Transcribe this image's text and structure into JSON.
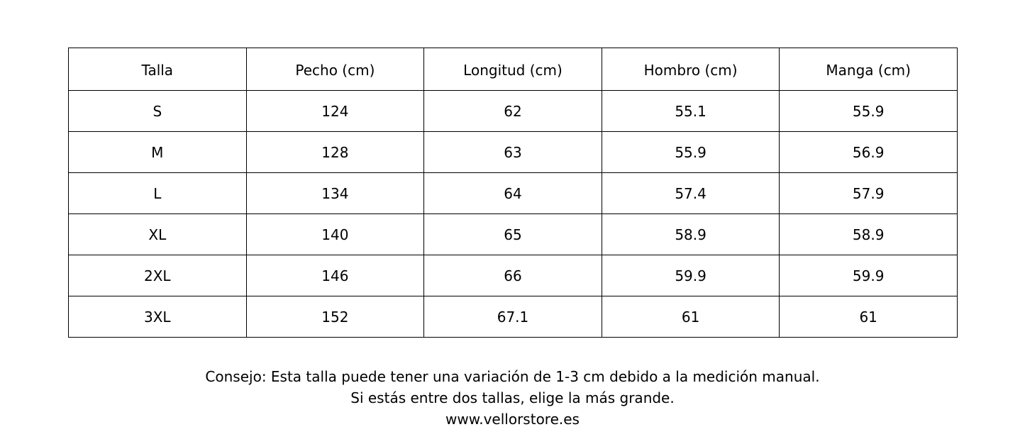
{
  "table": {
    "headers": [
      "Talla",
      "Pecho (cm)",
      "Longitud (cm)",
      "Hombro (cm)",
      "Manga (cm)"
    ],
    "rows": [
      [
        "S",
        "124",
        "62",
        "55.1",
        "55.9"
      ],
      [
        "M",
        "128",
        "63",
        "55.9",
        "56.9"
      ],
      [
        "L",
        "134",
        "64",
        "57.4",
        "57.9"
      ],
      [
        "XL",
        "140",
        "65",
        "58.9",
        "58.9"
      ],
      [
        "2XL",
        "146",
        "66",
        "59.9",
        "59.9"
      ],
      [
        "3XL",
        "152",
        "67.1",
        "61",
        "61"
      ]
    ]
  },
  "footer": {
    "tip": "Consejo: Esta talla puede tener una variación de 1-3 cm debido a la medición manual.",
    "advice": "Si estás entre dos tallas, elige la más grande.",
    "website": "www.vellorstore.es"
  }
}
